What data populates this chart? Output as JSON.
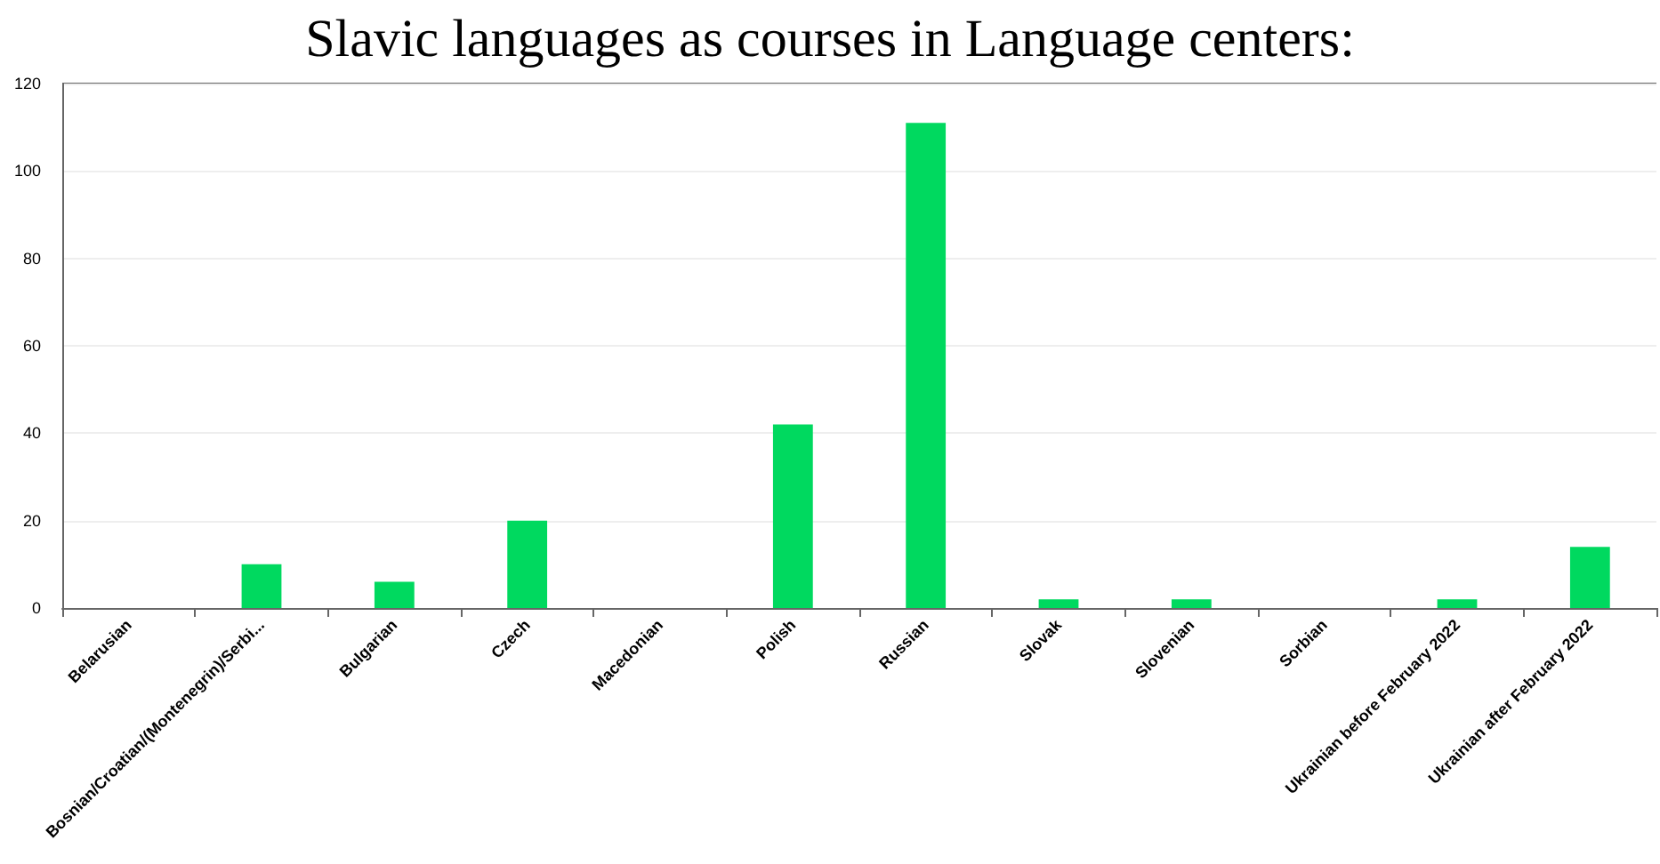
{
  "chart_data": {
    "type": "bar",
    "title": "Slavic languages as courses in Language centers:",
    "categories": [
      "Belarusian",
      "Bosnian/Croatian/(Montenegrin)/Serbi...",
      "Bulgarian",
      "Czech",
      "Macedonian",
      "Polish",
      "Russian",
      "Slovak",
      "Slovenian",
      "Sorbian",
      "Ukrainian before February 2022",
      "Ukrainian after February 2022"
    ],
    "values": [
      0,
      10,
      6,
      20,
      0,
      42,
      111,
      2,
      2,
      0,
      2,
      14
    ],
    "color": "#00d95f",
    "ylim": [
      0,
      120
    ],
    "yticks": [
      0,
      20,
      40,
      60,
      80,
      100,
      120
    ],
    "grid": "y"
  }
}
